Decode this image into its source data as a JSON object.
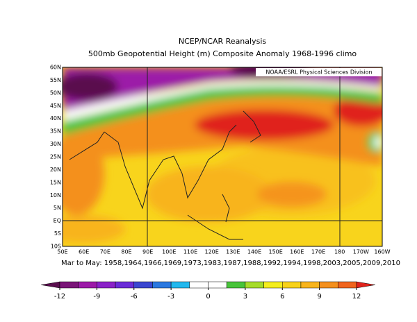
{
  "header": {
    "title": "NCEP/NCAR Reanalysis",
    "subtitle": "500mb Geopotential Height (m) Composite Anomaly 1968-1996 climo"
  },
  "map": {
    "credit": "NOAA/ESRL Physical Sciences Division",
    "lat_labels": [
      "60N",
      "55N",
      "50N",
      "45N",
      "40N",
      "35N",
      "30N",
      "25N",
      "20N",
      "15N",
      "10N",
      "5N",
      "EQ",
      "5S",
      "10S"
    ],
    "lon_labels": [
      "50E",
      "60E",
      "70E",
      "80E",
      "90E",
      "100E",
      "110E",
      "120E",
      "130E",
      "140E",
      "150E",
      "160E",
      "170E",
      "180",
      "170W",
      "160W"
    ]
  },
  "footer": {
    "caption": "Mar to May: 1958,1964,1966,1969,1973,1983,1987,1988,1992,1994,1998,2003,2005,2009,2010"
  },
  "colorbar": {
    "ticks": [
      -12,
      -9,
      -6,
      -3,
      0,
      3,
      6,
      9,
      12
    ],
    "colors": [
      "#5a0e4e",
      "#7a1478",
      "#9c1aa8",
      "#8a22c8",
      "#6a2cd8",
      "#3a46d0",
      "#2a78e0",
      "#22b8ee",
      "#ffffff",
      "#ffffff",
      "#48c43a",
      "#a6dc2a",
      "#f4ee1e",
      "#f8d21a",
      "#f8b41c",
      "#f4901e",
      "#f0641e",
      "#e0221c"
    ],
    "min": -13.5,
    "step": 1.5
  }
}
